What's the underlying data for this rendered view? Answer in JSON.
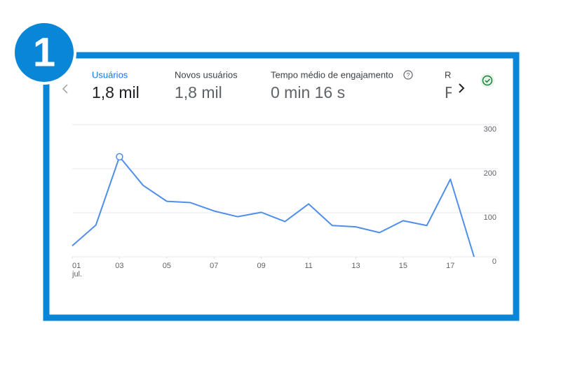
{
  "badge": "1",
  "tabs": [
    {
      "label": "Usuários",
      "value": "1,8 mil"
    },
    {
      "label": "Novos usuários",
      "value": "1,8 mil"
    },
    {
      "label": "Tempo médio de engajamento",
      "value": "0 min 16 s"
    },
    {
      "label": "R",
      "value": "F"
    }
  ],
  "chart_data": {
    "type": "line",
    "x": [
      1,
      2,
      3,
      4,
      5,
      6,
      7,
      8,
      9,
      10,
      11,
      12,
      13,
      14,
      15,
      16,
      17,
      18
    ],
    "series": [
      {
        "name": "Usuários",
        "color": "#4f8fea",
        "values": [
          25,
          72,
          227,
          162,
          126,
          123,
          104,
          91,
          101,
          80,
          120,
          71,
          68,
          55,
          82,
          71,
          176,
          0
        ]
      }
    ],
    "highlight_index": 2,
    "xlim": [
      1,
      18
    ],
    "xticks": [
      {
        "value": 1,
        "label": "01"
      },
      {
        "value": 3,
        "label": "03"
      },
      {
        "value": 5,
        "label": "05"
      },
      {
        "value": 7,
        "label": "07"
      },
      {
        "value": 9,
        "label": "09"
      },
      {
        "value": 11,
        "label": "11"
      },
      {
        "value": 13,
        "label": "13"
      },
      {
        "value": 15,
        "label": "15"
      },
      {
        "value": 17,
        "label": "17"
      }
    ],
    "x_sublabel": "jul.",
    "ylim": [
      0,
      300
    ],
    "yticks": [
      0,
      100,
      200,
      300
    ],
    "grid": true
  }
}
